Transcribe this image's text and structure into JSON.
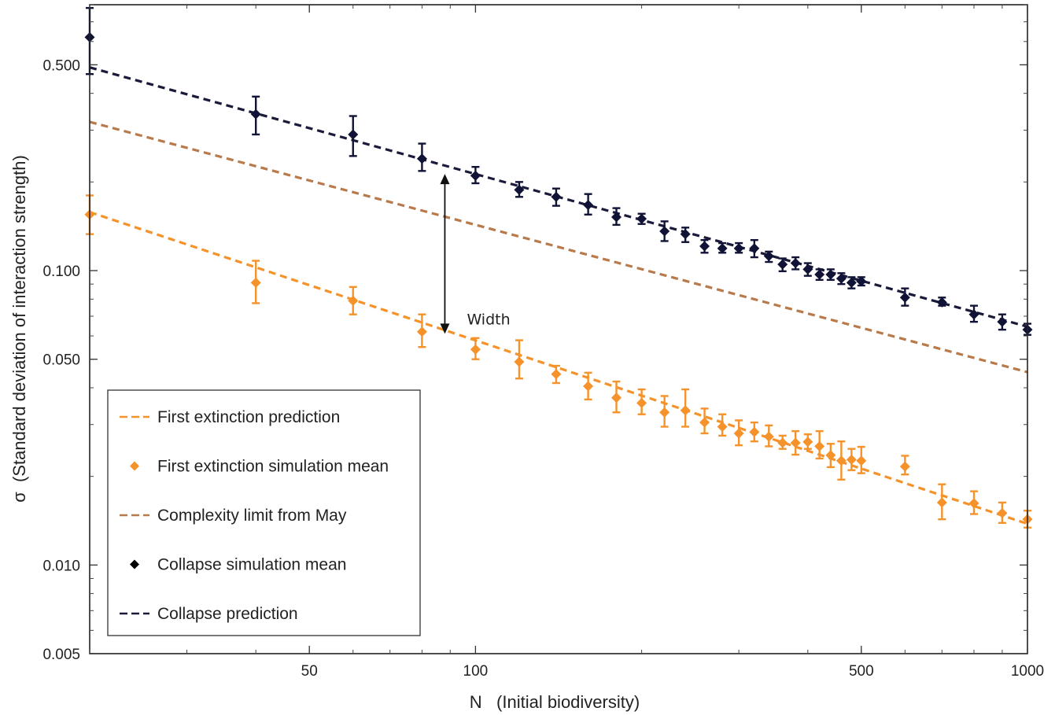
{
  "chart_data": {
    "type": "scatter",
    "title": "",
    "xlabel": "N   (Initial biodiversity)",
    "ylabel": "σ  (Standard deviation of interaction strength)",
    "xscale": "log",
    "yscale": "log",
    "xlim": [
      20,
      1000
    ],
    "ylim": [
      0.005,
      0.8
    ],
    "xticks": [
      {
        "value": 50,
        "label": "50"
      },
      {
        "value": 100,
        "label": "100"
      },
      {
        "value": 500,
        "label": "500"
      },
      {
        "value": 1000,
        "label": "1000"
      }
    ],
    "yticks": [
      {
        "value": 0.005,
        "label": "0.005"
      },
      {
        "value": 0.01,
        "label": "0.010"
      },
      {
        "value": 0.05,
        "label": "0.050"
      },
      {
        "value": 0.1,
        "label": "0.100"
      },
      {
        "value": 0.5,
        "label": "0.500"
      }
    ],
    "grid": false,
    "legend_position": "bottom-left",
    "legend": [
      {
        "label": "First extinction prediction",
        "kind": "dashed-line",
        "color": "#f5922a"
      },
      {
        "label": "First extinction simulation mean",
        "kind": "diamond",
        "color": "#f5922a"
      },
      {
        "label": "Complexity limit from May",
        "kind": "dashed-line",
        "color": "#b87a4b"
      },
      {
        "label": "Collapse simulation mean",
        "kind": "diamond",
        "color": "#000000"
      },
      {
        "label": "Collapse prediction",
        "kind": "dashed-line",
        "color": "#1a1a3a"
      }
    ],
    "series": [
      {
        "name": "First extinction prediction",
        "kind": "dashed-line",
        "color": "#f5922a",
        "x": [
          20,
          1000
        ],
        "y": [
          0.158,
          0.0138
        ]
      },
      {
        "name": "Complexity limit from May",
        "kind": "dashed-line",
        "color": "#b87a4b",
        "x": [
          20,
          1000
        ],
        "y": [
          0.32,
          0.0452
        ]
      },
      {
        "name": "Collapse prediction",
        "kind": "dashed-line",
        "color": "#1a1a3a",
        "x": [
          20,
          1000
        ],
        "y": [
          0.49,
          0.0645
        ]
      },
      {
        "name": "First extinction simulation mean",
        "kind": "points",
        "color": "#f5922a",
        "points": [
          {
            "x": 20,
            "y": 0.155,
            "lo": 0.133,
            "hi": 0.18
          },
          {
            "x": 40,
            "y": 0.091,
            "lo": 0.0775,
            "hi": 0.108
          },
          {
            "x": 60,
            "y": 0.079,
            "lo": 0.071,
            "hi": 0.088
          },
          {
            "x": 80,
            "y": 0.062,
            "lo": 0.055,
            "hi": 0.071
          },
          {
            "x": 100,
            "y": 0.054,
            "lo": 0.05,
            "hi": 0.059
          },
          {
            "x": 120,
            "y": 0.049,
            "lo": 0.043,
            "hi": 0.058
          },
          {
            "x": 140,
            "y": 0.0445,
            "lo": 0.0415,
            "hi": 0.0475
          },
          {
            "x": 160,
            "y": 0.0405,
            "lo": 0.0365,
            "hi": 0.045
          },
          {
            "x": 180,
            "y": 0.037,
            "lo": 0.033,
            "hi": 0.042
          },
          {
            "x": 200,
            "y": 0.0355,
            "lo": 0.0325,
            "hi": 0.0395
          },
          {
            "x": 220,
            "y": 0.033,
            "lo": 0.0295,
            "hi": 0.0375
          },
          {
            "x": 240,
            "y": 0.0335,
            "lo": 0.0295,
            "hi": 0.0395
          },
          {
            "x": 260,
            "y": 0.0305,
            "lo": 0.028,
            "hi": 0.034
          },
          {
            "x": 280,
            "y": 0.0295,
            "lo": 0.0275,
            "hi": 0.0325
          },
          {
            "x": 300,
            "y": 0.028,
            "lo": 0.0255,
            "hi": 0.031
          },
          {
            "x": 320,
            "y": 0.0283,
            "lo": 0.0263,
            "hi": 0.0305
          },
          {
            "x": 340,
            "y": 0.0273,
            "lo": 0.0253,
            "hi": 0.0298
          },
          {
            "x": 360,
            "y": 0.026,
            "lo": 0.0248,
            "hi": 0.0275
          },
          {
            "x": 380,
            "y": 0.026,
            "lo": 0.0237,
            "hi": 0.0285
          },
          {
            "x": 400,
            "y": 0.0262,
            "lo": 0.0248,
            "hi": 0.0278
          },
          {
            "x": 420,
            "y": 0.0253,
            "lo": 0.023,
            "hi": 0.0285
          },
          {
            "x": 440,
            "y": 0.0236,
            "lo": 0.0215,
            "hi": 0.0258
          },
          {
            "x": 460,
            "y": 0.0226,
            "lo": 0.0195,
            "hi": 0.0263
          },
          {
            "x": 480,
            "y": 0.0228,
            "lo": 0.021,
            "hi": 0.0248
          },
          {
            "x": 500,
            "y": 0.0226,
            "lo": 0.0205,
            "hi": 0.0252
          },
          {
            "x": 600,
            "y": 0.0216,
            "lo": 0.0203,
            "hi": 0.0235
          },
          {
            "x": 700,
            "y": 0.0163,
            "lo": 0.0143,
            "hi": 0.0188
          },
          {
            "x": 800,
            "y": 0.0162,
            "lo": 0.0149,
            "hi": 0.0178
          },
          {
            "x": 900,
            "y": 0.015,
            "lo": 0.0139,
            "hi": 0.0163
          },
          {
            "x": 1000,
            "y": 0.0143,
            "lo": 0.0134,
            "hi": 0.0153
          }
        ]
      },
      {
        "name": "Collapse simulation mean",
        "kind": "points",
        "color": "#101335",
        "points": [
          {
            "x": 20,
            "y": 0.62,
            "lo": 0.465,
            "hi": 0.78
          },
          {
            "x": 40,
            "y": 0.34,
            "lo": 0.29,
            "hi": 0.39
          },
          {
            "x": 60,
            "y": 0.29,
            "lo": 0.245,
            "hi": 0.335
          },
          {
            "x": 80,
            "y": 0.24,
            "lo": 0.218,
            "hi": 0.27
          },
          {
            "x": 100,
            "y": 0.21,
            "lo": 0.198,
            "hi": 0.225
          },
          {
            "x": 120,
            "y": 0.188,
            "lo": 0.178,
            "hi": 0.2
          },
          {
            "x": 140,
            "y": 0.178,
            "lo": 0.166,
            "hi": 0.19
          },
          {
            "x": 160,
            "y": 0.167,
            "lo": 0.155,
            "hi": 0.182
          },
          {
            "x": 180,
            "y": 0.152,
            "lo": 0.143,
            "hi": 0.163
          },
          {
            "x": 200,
            "y": 0.15,
            "lo": 0.144,
            "hi": 0.156
          },
          {
            "x": 220,
            "y": 0.136,
            "lo": 0.126,
            "hi": 0.147
          },
          {
            "x": 240,
            "y": 0.133,
            "lo": 0.125,
            "hi": 0.14
          },
          {
            "x": 260,
            "y": 0.121,
            "lo": 0.115,
            "hi": 0.127
          },
          {
            "x": 280,
            "y": 0.119,
            "lo": 0.115,
            "hi": 0.124
          },
          {
            "x": 300,
            "y": 0.119,
            "lo": 0.115,
            "hi": 0.124
          },
          {
            "x": 320,
            "y": 0.119,
            "lo": 0.111,
            "hi": 0.127
          },
          {
            "x": 340,
            "y": 0.112,
            "lo": 0.107,
            "hi": 0.116
          },
          {
            "x": 360,
            "y": 0.105,
            "lo": 0.0995,
            "hi": 0.11
          },
          {
            "x": 380,
            "y": 0.106,
            "lo": 0.101,
            "hi": 0.111
          },
          {
            "x": 400,
            "y": 0.101,
            "lo": 0.096,
            "hi": 0.106
          },
          {
            "x": 420,
            "y": 0.097,
            "lo": 0.093,
            "hi": 0.101
          },
          {
            "x": 440,
            "y": 0.097,
            "lo": 0.093,
            "hi": 0.101
          },
          {
            "x": 460,
            "y": 0.094,
            "lo": 0.09,
            "hi": 0.098
          },
          {
            "x": 480,
            "y": 0.091,
            "lo": 0.087,
            "hi": 0.095
          },
          {
            "x": 500,
            "y": 0.092,
            "lo": 0.089,
            "hi": 0.095
          },
          {
            "x": 600,
            "y": 0.081,
            "lo": 0.076,
            "hi": 0.087
          },
          {
            "x": 700,
            "y": 0.078,
            "lo": 0.076,
            "hi": 0.081
          },
          {
            "x": 800,
            "y": 0.071,
            "lo": 0.067,
            "hi": 0.076
          },
          {
            "x": 900,
            "y": 0.067,
            "lo": 0.063,
            "hi": 0.071
          },
          {
            "x": 1000,
            "y": 0.063,
            "lo": 0.0605,
            "hi": 0.066
          }
        ]
      }
    ],
    "annotations": [
      {
        "text": "Width",
        "kind": "double-arrow",
        "x": 88,
        "y_from": 0.061,
        "y_to": 0.213
      }
    ]
  }
}
